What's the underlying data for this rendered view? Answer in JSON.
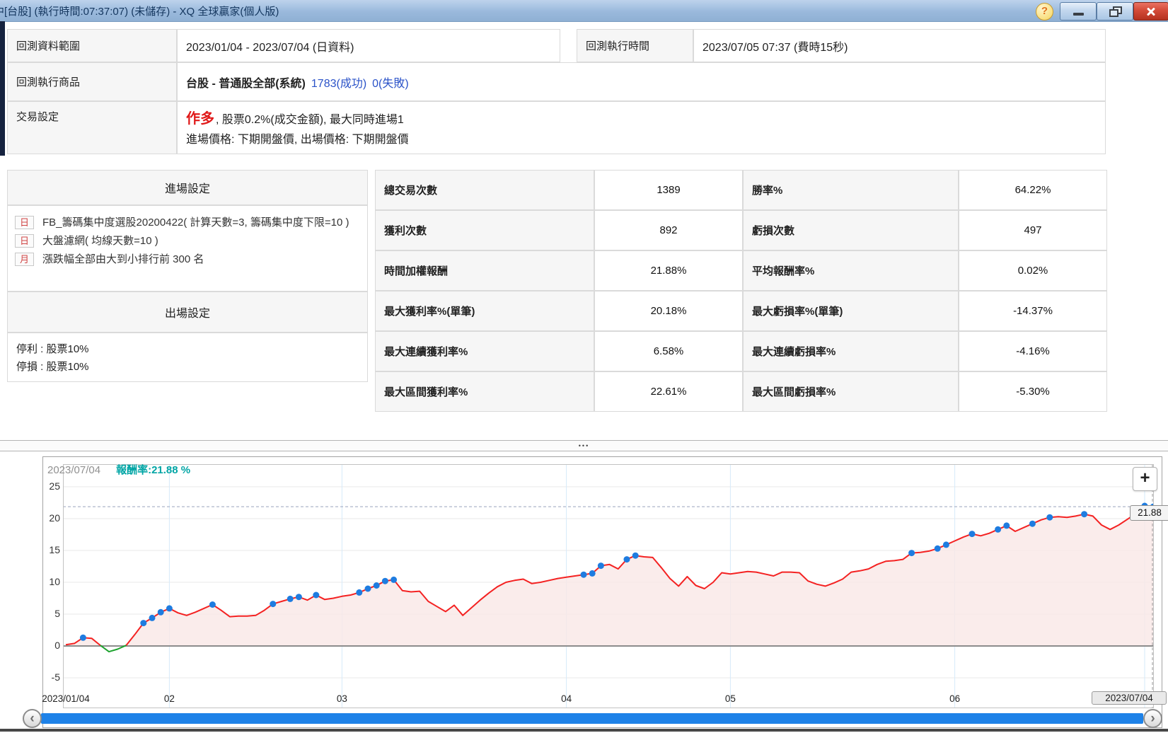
{
  "window": {
    "title_clipped_prefix": "中",
    "title": "[台股] (執行時間:07:37:07) (未儲存) - XQ 全球贏家(個人版)"
  },
  "icons": {
    "help": "?",
    "zoom_plus": "+",
    "splitter_dots": "•••",
    "scroll_left": "‹",
    "scroll_right": "›"
  },
  "info": {
    "range_label": "回測資料範圍",
    "range_value": "2023/01/04 - 2023/07/04 (日資料)",
    "exec_time_label": "回測執行時間",
    "exec_time_value": "2023/07/05 07:37 (費時15秒)",
    "product_label": "回測執行商品",
    "product_value_bold": "台股 - 普通股全部(系統)",
    "product_success": "1783(成功)",
    "product_fail": "0(失敗)",
    "trade_label": "交易設定",
    "trade_direction": "作多",
    "trade_rest": ", 股票0.2%(成交金額), 最大同時進場1",
    "trade_line2": "進場價格: 下期開盤價, 出場價格: 下期開盤價"
  },
  "entry_panel": {
    "entry_header": "進場設定",
    "items": [
      {
        "badge": "日",
        "text": "FB_籌碼集中度選股20200422( 計算天數=3, 籌碼集中度下限=10 )"
      },
      {
        "badge": "日",
        "text": "大盤濾網( 均線天數=10 )"
      },
      {
        "badge": "月",
        "text": "漲跌幅全部由大到小排行前 300 名"
      }
    ],
    "exit_header": "出場設定",
    "exit_lines": [
      "停利 : 股票10%",
      "停損 : 股票10%"
    ]
  },
  "stats": {
    "rows": [
      {
        "label": "總交易次數",
        "value": "1389",
        "label2": "勝率%",
        "value2": "64.22%",
        "value2_red": true
      },
      {
        "label": "獲利次數",
        "value": "892",
        "label2": "虧損次數",
        "value2": "497"
      },
      {
        "label": "時間加權報酬",
        "value": "21.88%",
        "value_red": true,
        "label2": "平均報酬率%",
        "value2": "0.02%"
      },
      {
        "label": "最大獲利率%(單筆)",
        "value": "20.18%",
        "label2": "最大虧損率%(單筆)",
        "value2": "-14.37%"
      },
      {
        "label": "最大連續獲利率%",
        "value": "6.58%",
        "label2": "最大連續虧損率%",
        "value2": "-4.16%"
      },
      {
        "label": "最大區間獲利率%",
        "value": "22.61%",
        "label2": "最大區間虧損率%",
        "value2": "-5.30%"
      }
    ]
  },
  "chart": {
    "header_date": "2023/07/04",
    "header_metric": "報酬率:21.88 %",
    "target_label": "21.88",
    "colors": {
      "line": "#f42222",
      "line_below_zero": "#1ea32f",
      "fill": "#f9e7e6",
      "marker": "#1e7ce0",
      "grid": "#e9e9e9",
      "vgrid": "#d6eafa",
      "zero": "#8c8c8c",
      "target_line": "#9aa2bd",
      "crosshair": "#999999",
      "metric_text": "#00a5a5",
      "scrollbar": "#1e82e8"
    }
  },
  "chart_data": {
    "type": "line",
    "series": [
      {
        "name": "報酬率",
        "values": [
          0.2,
          0.4,
          1.3,
          1.2,
          0.1,
          -0.9,
          -0.5,
          0.1,
          1.8,
          3.6,
          4.4,
          5.3,
          5.9,
          5.2,
          4.8,
          5.3,
          5.9,
          6.5,
          5.6,
          4.6,
          4.7,
          4.7,
          4.8,
          5.6,
          6.6,
          7.0,
          7.4,
          7.7,
          7.2,
          8.0,
          7.3,
          7.5,
          7.8,
          8.0,
          8.4,
          9.0,
          9.5,
          10.2,
          10.4,
          8.7,
          8.5,
          8.6,
          7.0,
          6.2,
          5.4,
          6.4,
          4.8,
          6.0,
          7.2,
          8.3,
          9.3,
          10.0,
          10.3,
          10.5,
          9.8,
          10.0,
          10.3,
          10.6,
          10.8,
          11.0,
          11.2,
          11.4,
          12.6,
          12.8,
          12.1,
          13.6,
          14.2,
          14.0,
          13.9,
          12.3,
          10.6,
          9.4,
          10.9,
          9.5,
          9.0,
          10.0,
          11.5,
          11.3,
          11.5,
          11.7,
          11.6,
          11.3,
          11.0,
          11.6,
          11.6,
          11.5,
          10.2,
          9.7,
          9.4,
          9.9,
          10.5,
          11.6,
          11.8,
          12.1,
          12.8,
          13.3,
          13.4,
          13.6,
          14.6,
          14.7,
          14.9,
          15.3,
          15.9,
          16.5,
          17.1,
          17.6,
          17.3,
          17.7,
          18.3,
          18.9,
          18.0,
          18.6,
          19.2,
          19.8,
          20.2,
          20.3,
          20.2,
          20.4,
          20.7,
          20.4,
          19.0,
          18.3,
          19.0,
          19.9,
          20.8,
          22.0,
          21.88
        ]
      }
    ],
    "marker_indexes": [
      2,
      9,
      10,
      11,
      12,
      17,
      24,
      26,
      27,
      29,
      34,
      35,
      36,
      37,
      38,
      60,
      61,
      62,
      65,
      66,
      98,
      101,
      102,
      105,
      108,
      109,
      112,
      114,
      118,
      125,
      126
    ],
    "x_ticks": [
      {
        "index": 0,
        "label": "2023/01/04"
      },
      {
        "index": 12,
        "label": "02"
      },
      {
        "index": 32,
        "label": "03"
      },
      {
        "index": 58,
        "label": "04"
      },
      {
        "index": 77,
        "label": "05"
      },
      {
        "index": 103,
        "label": "06"
      },
      {
        "index": 125,
        "label": "2023/07/04",
        "boxed": true
      }
    ],
    "y_ticks": [
      25,
      20,
      15,
      10,
      5,
      0,
      -5
    ],
    "ylim": [
      -9.5,
      28.5
    ],
    "target_value": 21.88,
    "final_value": 21.88,
    "grid": true,
    "legend_position": "none"
  }
}
